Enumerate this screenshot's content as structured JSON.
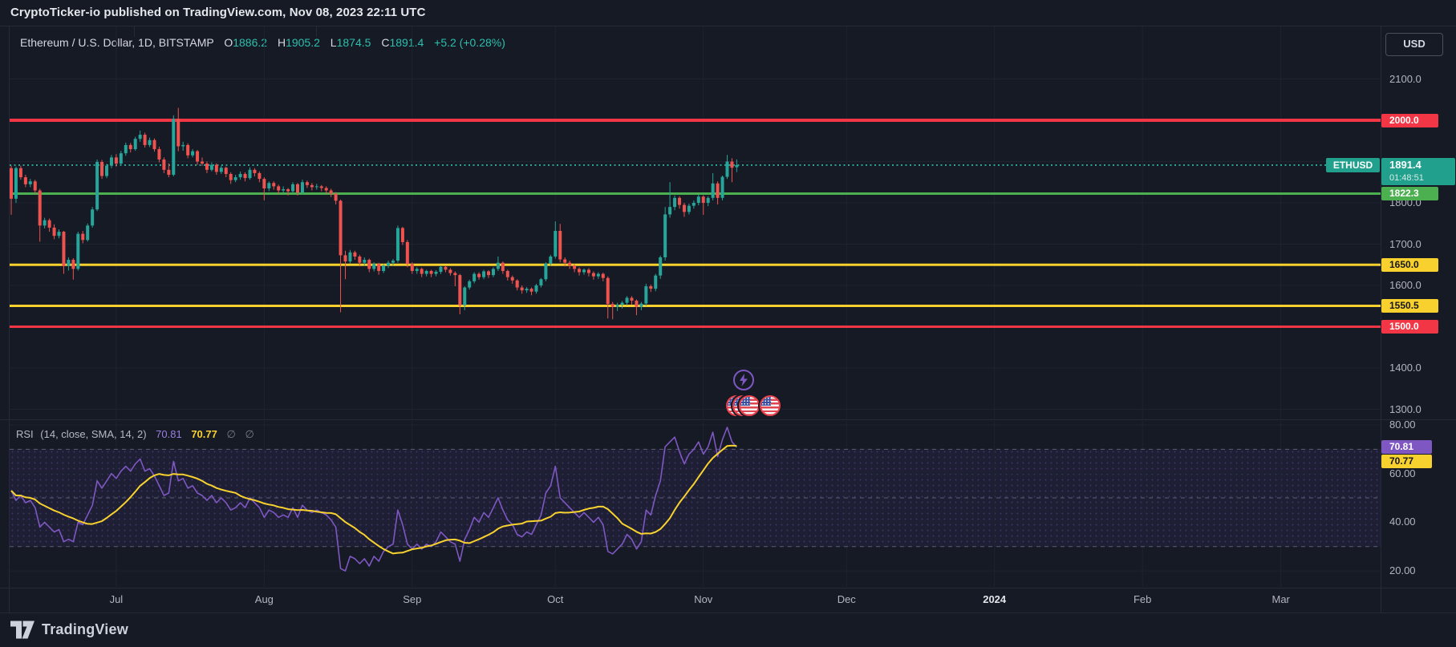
{
  "top_bar": {
    "attribution": "CryptoTicker-io published on TradingView.com, Nov 08, 2023 22:11 UTC"
  },
  "header": {
    "symbol_line": "Ethereum / U.S. Dollar, 1D, BITSTAMP",
    "ohlc": [
      {
        "k": "O",
        "v": "1886.2"
      },
      {
        "k": "H",
        "v": "1905.2"
      },
      {
        "k": "L",
        "v": "1874.5"
      },
      {
        "k": "C",
        "v": "1891.4"
      }
    ],
    "change": "+5.2 (+0.28%)"
  },
  "currency_button": {
    "label": "USD"
  },
  "footer": {
    "logo_text": "TradingView"
  },
  "colors": {
    "background": "#151a24",
    "up_candle": "#26a69a",
    "down_candle": "#ef5350",
    "resistance_red": "#f23645",
    "support_green": "#4caf50",
    "level_yellow": "#f8d12f",
    "last_price_teal": "#22a08e",
    "rsi_purple": "#7e57c2",
    "rsi_sma_yellow": "#f7d22e",
    "axis_text": "#b2b5be",
    "grid": "#1d2330"
  },
  "chart_data": {
    "type": "candlestick",
    "symbol": "ETHUSD",
    "exchange": "BITSTAMP",
    "interval": "1D",
    "title": "Ethereum / U.S. Dollar",
    "price_axis_ticks": [
      {
        "label": "2100.0",
        "price": 2100
      },
      {
        "label": "1800.0",
        "price": 1800
      },
      {
        "label": "1700.0",
        "price": 1700
      },
      {
        "label": "1600.0",
        "price": 1600
      },
      {
        "label": "1400.0",
        "price": 1400
      },
      {
        "label": "1300.0",
        "price": 1300
      }
    ],
    "price_gridlines": [
      2100,
      2000,
      1900,
      1800,
      1700,
      1600,
      1500,
      1400,
      1300
    ],
    "levels": [
      {
        "label": "2000.0",
        "price": 2000.0,
        "color": "#f23645",
        "text_color": "#ffffff",
        "thickness": 4
      },
      {
        "label": "1822.3",
        "price": 1822.3,
        "color": "#4caf50",
        "text_color": "#ffffff",
        "thickness": 3
      },
      {
        "label": "1650.0",
        "price": 1650.0,
        "color": "#f8d12f",
        "text_color": "#14161c",
        "thickness": 3
      },
      {
        "label": "1550.5",
        "price": 1550.5,
        "color": "#f8d12f",
        "text_color": "#14161c",
        "thickness": 3
      },
      {
        "label": "1500.0",
        "price": 1500.0,
        "color": "#f23645",
        "text_color": "#ffffff",
        "thickness": 3
      }
    ],
    "last_price": {
      "symbol_label": "ETHUSD",
      "label": "1891.4",
      "price": 1891.4,
      "countdown": "01:48:51",
      "color": "#22a08e"
    },
    "months": [
      {
        "text": "Jul",
        "day": 22,
        "strong": false
      },
      {
        "text": "Aug",
        "day": 53,
        "strong": false
      },
      {
        "text": "Sep",
        "day": 84,
        "strong": false
      },
      {
        "text": "Oct",
        "day": 114,
        "strong": false
      },
      {
        "text": "Nov",
        "day": 145,
        "strong": false
      },
      {
        "text": "Dec",
        "day": 175,
        "strong": false
      },
      {
        "text": "2024",
        "day": 206,
        "strong": true
      },
      {
        "text": "Feb",
        "day": 237,
        "strong": false
      },
      {
        "text": "Mar",
        "day": 266,
        "strong": false
      }
    ],
    "candles": [
      [
        1884,
        1890,
        1771,
        1810
      ],
      [
        1810,
        1888,
        1800,
        1884
      ],
      [
        1884,
        1890,
        1856,
        1862
      ],
      [
        1862,
        1868,
        1838,
        1845
      ],
      [
        1845,
        1858,
        1838,
        1852
      ],
      [
        1852,
        1856,
        1822,
        1830
      ],
      [
        1830,
        1834,
        1706,
        1745
      ],
      [
        1745,
        1764,
        1738,
        1758
      ],
      [
        1758,
        1762,
        1730,
        1740
      ],
      [
        1740,
        1748,
        1712,
        1720
      ],
      [
        1720,
        1736,
        1714,
        1730
      ],
      [
        1730,
        1732,
        1628,
        1647
      ],
      [
        1647,
        1668,
        1636,
        1662
      ],
      [
        1662,
        1666,
        1614,
        1640
      ],
      [
        1640,
        1730,
        1636,
        1725
      ],
      [
        1725,
        1732,
        1702,
        1710
      ],
      [
        1710,
        1750,
        1706,
        1745
      ],
      [
        1745,
        1790,
        1740,
        1784
      ],
      [
        1784,
        1905,
        1780,
        1899
      ],
      [
        1899,
        1904,
        1858,
        1865
      ],
      [
        1865,
        1895,
        1860,
        1890
      ],
      [
        1890,
        1916,
        1884,
        1910
      ],
      [
        1910,
        1918,
        1888,
        1895
      ],
      [
        1895,
        1926,
        1890,
        1920
      ],
      [
        1920,
        1946,
        1914,
        1940
      ],
      [
        1940,
        1945,
        1922,
        1930
      ],
      [
        1930,
        1960,
        1926,
        1955
      ],
      [
        1955,
        1975,
        1948,
        1965
      ],
      [
        1965,
        1970,
        1934,
        1940
      ],
      [
        1940,
        1958,
        1935,
        1952
      ],
      [
        1952,
        1956,
        1924,
        1930
      ],
      [
        1930,
        1936,
        1898,
        1905
      ],
      [
        1905,
        1910,
        1872,
        1880
      ],
      [
        1880,
        1896,
        1862,
        1868
      ],
      [
        1868,
        2012,
        1864,
        2003
      ],
      [
        2003,
        2030,
        1925,
        1937
      ],
      [
        1937,
        1948,
        1926,
        1940
      ],
      [
        1940,
        1944,
        1908,
        1915
      ],
      [
        1915,
        1930,
        1910,
        1925
      ],
      [
        1925,
        1928,
        1892,
        1900
      ],
      [
        1900,
        1910,
        1890,
        1895
      ],
      [
        1895,
        1900,
        1872,
        1880
      ],
      [
        1880,
        1898,
        1876,
        1892
      ],
      [
        1892,
        1896,
        1868,
        1875
      ],
      [
        1875,
        1890,
        1870,
        1885
      ],
      [
        1885,
        1888,
        1862,
        1870
      ],
      [
        1870,
        1874,
        1846,
        1855
      ],
      [
        1855,
        1868,
        1850,
        1862
      ],
      [
        1862,
        1876,
        1856,
        1870
      ],
      [
        1870,
        1874,
        1852,
        1860
      ],
      [
        1860,
        1886,
        1856,
        1880
      ],
      [
        1880,
        1884,
        1864,
        1872
      ],
      [
        1872,
        1876,
        1850,
        1858
      ],
      [
        1858,
        1862,
        1806,
        1835
      ],
      [
        1835,
        1852,
        1828,
        1848
      ],
      [
        1848,
        1852,
        1832,
        1840
      ],
      [
        1840,
        1844,
        1822,
        1830
      ],
      [
        1830,
        1840,
        1824,
        1833
      ],
      [
        1833,
        1836,
        1818,
        1828
      ],
      [
        1828,
        1850,
        1824,
        1845
      ],
      [
        1845,
        1848,
        1818,
        1825
      ],
      [
        1825,
        1856,
        1820,
        1850
      ],
      [
        1850,
        1854,
        1836,
        1843
      ],
      [
        1843,
        1848,
        1830,
        1838
      ],
      [
        1838,
        1846,
        1832,
        1840
      ],
      [
        1840,
        1843,
        1828,
        1836
      ],
      [
        1836,
        1840,
        1822,
        1830
      ],
      [
        1830,
        1834,
        1814,
        1822
      ],
      [
        1822,
        1826,
        1796,
        1805
      ],
      [
        1805,
        1808,
        1535,
        1673
      ],
      [
        1673,
        1684,
        1615,
        1658
      ],
      [
        1658,
        1686,
        1652,
        1680
      ],
      [
        1680,
        1684,
        1662,
        1670
      ],
      [
        1670,
        1674,
        1646,
        1655
      ],
      [
        1655,
        1668,
        1648,
        1662
      ],
      [
        1662,
        1665,
        1632,
        1640
      ],
      [
        1640,
        1656,
        1634,
        1652
      ],
      [
        1652,
        1655,
        1626,
        1635
      ],
      [
        1635,
        1652,
        1630,
        1648
      ],
      [
        1648,
        1660,
        1642,
        1655
      ],
      [
        1655,
        1664,
        1648,
        1660
      ],
      [
        1660,
        1745,
        1655,
        1739
      ],
      [
        1739,
        1742,
        1698,
        1705
      ],
      [
        1705,
        1710,
        1644,
        1652
      ],
      [
        1652,
        1656,
        1628,
        1635
      ],
      [
        1635,
        1644,
        1628,
        1640
      ],
      [
        1640,
        1643,
        1620,
        1628
      ],
      [
        1628,
        1638,
        1622,
        1635
      ],
      [
        1635,
        1638,
        1620,
        1628
      ],
      [
        1628,
        1637,
        1622,
        1633
      ],
      [
        1633,
        1648,
        1628,
        1645
      ],
      [
        1645,
        1648,
        1632,
        1638
      ],
      [
        1638,
        1642,
        1624,
        1630
      ],
      [
        1630,
        1634,
        1598,
        1625
      ],
      [
        1625,
        1628,
        1530,
        1552
      ],
      [
        1552,
        1598,
        1540,
        1595
      ],
      [
        1595,
        1614,
        1590,
        1610
      ],
      [
        1610,
        1632,
        1605,
        1628
      ],
      [
        1628,
        1632,
        1614,
        1620
      ],
      [
        1620,
        1638,
        1615,
        1634
      ],
      [
        1634,
        1637,
        1618,
        1625
      ],
      [
        1625,
        1644,
        1620,
        1640
      ],
      [
        1640,
        1670,
        1635,
        1655
      ],
      [
        1655,
        1658,
        1628,
        1635
      ],
      [
        1635,
        1638,
        1612,
        1620
      ],
      [
        1620,
        1624,
        1604,
        1612
      ],
      [
        1612,
        1615,
        1588,
        1595
      ],
      [
        1595,
        1600,
        1580,
        1588
      ],
      [
        1588,
        1596,
        1582,
        1592
      ],
      [
        1592,
        1595,
        1576,
        1585
      ],
      [
        1585,
        1604,
        1580,
        1600
      ],
      [
        1600,
        1618,
        1595,
        1615
      ],
      [
        1615,
        1656,
        1610,
        1653
      ],
      [
        1653,
        1674,
        1648,
        1670
      ],
      [
        1670,
        1755,
        1665,
        1732
      ],
      [
        1732,
        1749,
        1656,
        1663
      ],
      [
        1663,
        1668,
        1646,
        1655
      ],
      [
        1655,
        1660,
        1640,
        1648
      ],
      [
        1648,
        1652,
        1632,
        1640
      ],
      [
        1640,
        1644,
        1624,
        1632
      ],
      [
        1632,
        1641,
        1626,
        1638
      ],
      [
        1638,
        1642,
        1622,
        1630
      ],
      [
        1630,
        1634,
        1614,
        1622
      ],
      [
        1622,
        1632,
        1616,
        1628
      ],
      [
        1628,
        1631,
        1610,
        1618
      ],
      [
        1618,
        1622,
        1520,
        1555
      ],
      [
        1555,
        1560,
        1518,
        1548
      ],
      [
        1548,
        1558,
        1538,
        1553
      ],
      [
        1553,
        1562,
        1544,
        1558
      ],
      [
        1558,
        1574,
        1552,
        1570
      ],
      [
        1570,
        1574,
        1554,
        1563
      ],
      [
        1563,
        1566,
        1528,
        1548
      ],
      [
        1548,
        1560,
        1540,
        1556
      ],
      [
        1556,
        1604,
        1550,
        1598
      ],
      [
        1598,
        1602,
        1584,
        1592
      ],
      [
        1592,
        1628,
        1586,
        1624
      ],
      [
        1624,
        1672,
        1616,
        1668
      ],
      [
        1668,
        1790,
        1660,
        1772
      ],
      [
        1772,
        1850,
        1764,
        1790
      ],
      [
        1790,
        1818,
        1782,
        1812
      ],
      [
        1812,
        1816,
        1786,
        1795
      ],
      [
        1795,
        1800,
        1766,
        1778
      ],
      [
        1778,
        1798,
        1772,
        1793
      ],
      [
        1793,
        1806,
        1786,
        1800
      ],
      [
        1800,
        1820,
        1794,
        1815
      ],
      [
        1815,
        1818,
        1771,
        1800
      ],
      [
        1800,
        1816,
        1792,
        1812
      ],
      [
        1812,
        1872,
        1806,
        1847
      ],
      [
        1847,
        1852,
        1796,
        1812
      ],
      [
        1812,
        1866,
        1806,
        1863
      ],
      [
        1863,
        1916,
        1858,
        1900
      ],
      [
        1900,
        1908,
        1850,
        1885
      ],
      [
        1886.2,
        1905.2,
        1874.5,
        1891.4
      ]
    ],
    "rsi": {
      "label": "RSI",
      "params": "(14, close, SMA, 14, 2)",
      "value_label": "70.81",
      "sma_label": "70.77",
      "value_color": "#7e57c2",
      "sma_color": "#f7d22e",
      "empty_markers": [
        "∅",
        "∅"
      ],
      "axis_ticks": [
        {
          "label": "80.00",
          "value": 80
        },
        {
          "label": "60.00",
          "value": 60
        },
        {
          "label": "40.00",
          "value": 40
        },
        {
          "label": "20.00",
          "value": 20
        }
      ],
      "guides": [
        70,
        50,
        30
      ],
      "band": {
        "from": 30,
        "to": 70
      },
      "values": [
        53,
        49,
        51,
        48,
        49,
        46,
        38,
        40,
        38,
        36,
        37,
        32,
        33,
        32,
        40,
        39,
        43,
        47,
        57,
        54,
        57,
        60,
        58,
        61,
        63,
        61,
        64,
        66,
        61,
        62,
        59,
        55,
        51,
        52,
        65,
        57,
        58,
        54,
        55,
        52,
        51,
        49,
        51,
        48,
        50,
        48,
        45,
        46,
        48,
        46,
        50,
        48,
        46,
        42,
        45,
        44,
        42,
        43,
        42,
        46,
        42,
        47,
        45,
        44,
        45,
        44,
        43,
        41,
        38,
        21,
        20,
        26,
        25,
        23,
        25,
        22,
        26,
        24,
        28,
        30,
        31,
        45,
        39,
        31,
        29,
        31,
        29,
        31,
        30,
        32,
        36,
        34,
        32,
        31,
        24,
        33,
        37,
        42,
        40,
        44,
        42,
        46,
        50,
        45,
        41,
        39,
        35,
        34,
        36,
        35,
        39,
        43,
        52,
        55,
        63,
        50,
        48,
        46,
        44,
        42,
        44,
        42,
        40,
        42,
        39,
        28,
        27,
        29,
        31,
        35,
        33,
        29,
        32,
        45,
        43,
        51,
        57,
        71,
        73,
        75,
        69,
        64,
        68,
        70,
        73,
        68,
        71,
        77,
        67,
        74,
        79,
        73,
        70.81
      ]
    }
  }
}
